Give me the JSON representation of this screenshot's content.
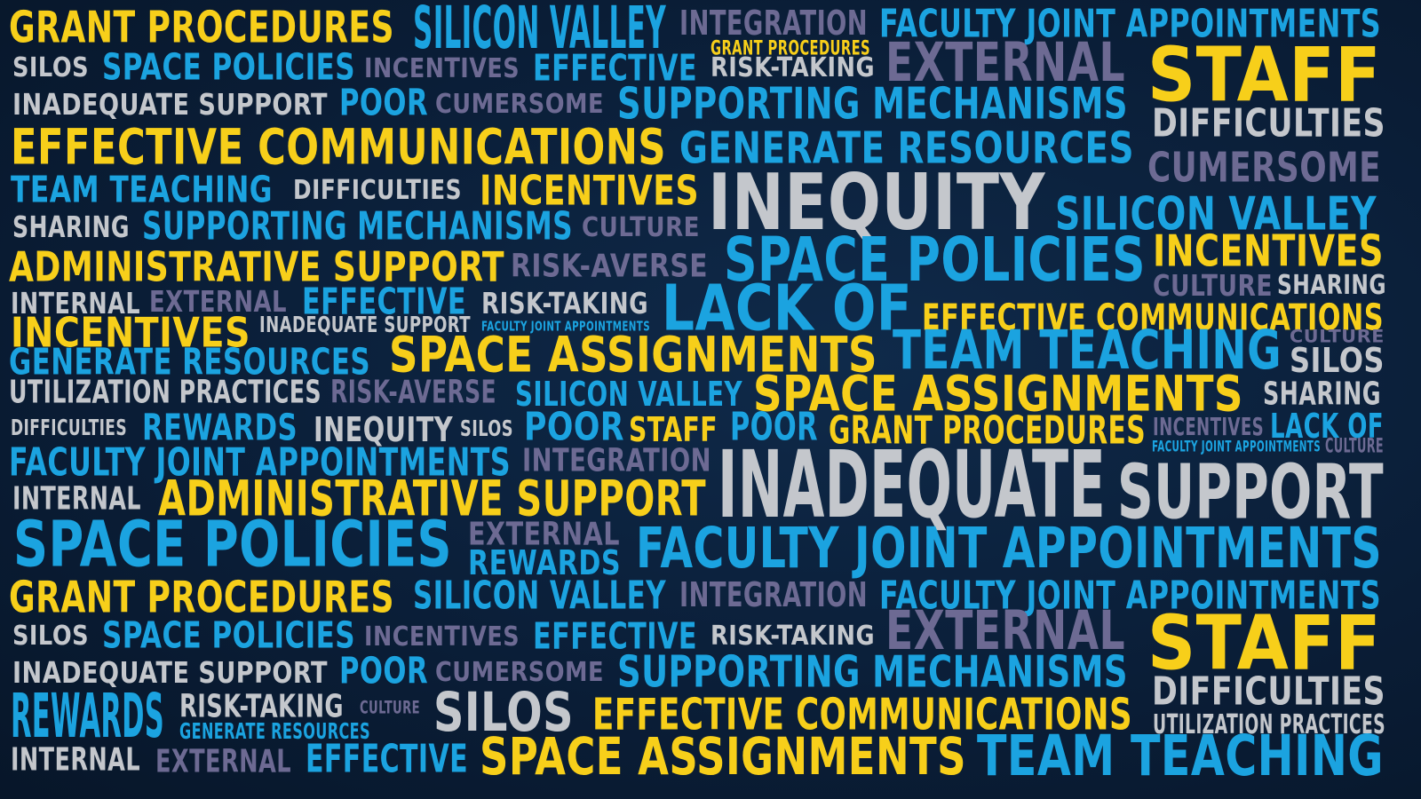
{
  "colors": {
    "background": "#0a1f3a",
    "yellow": "#f7cf1a",
    "blue": "#1ba3e0",
    "gray": "#c4c7cc",
    "purple": "#6d6a93"
  },
  "words": [
    {
      "text": "GRANT PROCEDURES",
      "color": "yellow"
    },
    {
      "text": "SILICON VALLEY",
      "color": "blue"
    },
    {
      "text": "INTEGRATION",
      "color": "purple"
    },
    {
      "text": "FACULTY JOINT APPOINTMENTS",
      "color": "blue"
    },
    {
      "text": "GRANT PROCEDURES",
      "color": "yellow"
    },
    {
      "text": "SILOS",
      "color": "gray"
    },
    {
      "text": "SPACE POLICIES",
      "color": "blue"
    },
    {
      "text": "INCENTIVES",
      "color": "purple"
    },
    {
      "text": "EFFECTIVE",
      "color": "blue"
    },
    {
      "text": "RISK-TAKING",
      "color": "gray"
    },
    {
      "text": "EXTERNAL",
      "color": "purple"
    },
    {
      "text": "STAFF",
      "color": "yellow"
    },
    {
      "text": "INADEQUATE SUPPORT",
      "color": "gray"
    },
    {
      "text": "POOR",
      "color": "blue"
    },
    {
      "text": "CUMERSOME",
      "color": "purple"
    },
    {
      "text": "SUPPORTING MECHANISMS",
      "color": "blue"
    },
    {
      "text": "DIFFICULTIES",
      "color": "gray"
    },
    {
      "text": "EFFECTIVE COMMUNICATIONS",
      "color": "yellow"
    },
    {
      "text": "GENERATE RESOURCES",
      "color": "blue"
    },
    {
      "text": "CUMERSOME",
      "color": "purple"
    },
    {
      "text": "TEAM TEACHING",
      "color": "blue"
    },
    {
      "text": "DIFFICULTIES",
      "color": "gray"
    },
    {
      "text": "INCENTIVES",
      "color": "yellow"
    },
    {
      "text": "INEQUITY",
      "color": "gray"
    },
    {
      "text": "SILICON VALLEY",
      "color": "blue"
    },
    {
      "text": "SHARING",
      "color": "gray"
    },
    {
      "text": "SUPPORTING MECHANISMS",
      "color": "blue"
    },
    {
      "text": "CULTURE",
      "color": "purple"
    },
    {
      "text": "ADMINISTRATIVE SUPPORT",
      "color": "yellow"
    },
    {
      "text": "RISK-AVERSE",
      "color": "purple"
    },
    {
      "text": "SPACE POLICIES",
      "color": "blue"
    },
    {
      "text": "INCENTIVES",
      "color": "yellow"
    },
    {
      "text": "INTERNAL",
      "color": "gray"
    },
    {
      "text": "EXTERNAL",
      "color": "purple"
    },
    {
      "text": "EFFECTIVE",
      "color": "blue"
    },
    {
      "text": "RISK-TAKING",
      "color": "gray"
    },
    {
      "text": "LACK OF",
      "color": "blue"
    },
    {
      "text": "CULTURE",
      "color": "purple"
    },
    {
      "text": "SHARING",
      "color": "gray"
    },
    {
      "text": "INCENTIVES",
      "color": "yellow"
    },
    {
      "text": "INADEQUATE SUPPORT",
      "color": "gray"
    },
    {
      "text": "FACULTY JOINT APPOINTMENTS",
      "color": "blue"
    },
    {
      "text": "EFFECTIVE COMMUNICATIONS",
      "color": "yellow"
    },
    {
      "text": "GENERATE RESOURCES",
      "color": "blue"
    },
    {
      "text": "SPACE ASSIGNMENTS",
      "color": "yellow"
    },
    {
      "text": "TEAM TEACHING",
      "color": "blue"
    },
    {
      "text": "CULTURE",
      "color": "purple"
    },
    {
      "text": "SILOS",
      "color": "gray"
    },
    {
      "text": "UTILIZATION PRACTICES",
      "color": "gray"
    },
    {
      "text": "RISK-AVERSE",
      "color": "purple"
    },
    {
      "text": "SILICON VALLEY",
      "color": "blue"
    },
    {
      "text": "SPACE ASSIGNMENTS",
      "color": "yellow"
    },
    {
      "text": "SHARING",
      "color": "gray"
    },
    {
      "text": "DIFFICULTIES",
      "color": "gray"
    },
    {
      "text": "REWARDS",
      "color": "blue"
    },
    {
      "text": "INEQUITY",
      "color": "gray"
    },
    {
      "text": "SILOS",
      "color": "gray"
    },
    {
      "text": "POOR",
      "color": "blue"
    },
    {
      "text": "STAFF",
      "color": "yellow"
    },
    {
      "text": "POOR",
      "color": "blue"
    },
    {
      "text": "GRANT PROCEDURES",
      "color": "yellow"
    },
    {
      "text": "INCENTIVES",
      "color": "purple"
    },
    {
      "text": "LACK OF",
      "color": "blue"
    },
    {
      "text": "FACULTY JOINT APPOINTMENTS",
      "color": "blue"
    },
    {
      "text": "CULTURE",
      "color": "purple"
    },
    {
      "text": "FACULTY JOINT APPOINTMENTS",
      "color": "blue"
    },
    {
      "text": "INTEGRATION",
      "color": "purple"
    },
    {
      "text": "INADEQUATE",
      "color": "gray"
    },
    {
      "text": "SUPPORT",
      "color": "gray"
    },
    {
      "text": "INTERNAL",
      "color": "gray"
    },
    {
      "text": "ADMINISTRATIVE SUPPORT",
      "color": "yellow"
    },
    {
      "text": "SPACE POLICIES",
      "color": "blue"
    },
    {
      "text": "EXTERNAL",
      "color": "purple"
    },
    {
      "text": "REWARDS",
      "color": "blue"
    },
    {
      "text": "FACULTY JOINT APPOINTMENTS",
      "color": "blue"
    },
    {
      "text": "GRANT PROCEDURES",
      "color": "yellow"
    },
    {
      "text": "SILICON VALLEY",
      "color": "blue"
    },
    {
      "text": "INTEGRATION",
      "color": "purple"
    },
    {
      "text": "FACULTY JOINT APPOINTMENTS",
      "color": "blue"
    },
    {
      "text": "SILOS",
      "color": "gray"
    },
    {
      "text": "SPACE POLICIES",
      "color": "blue"
    },
    {
      "text": "INCENTIVES",
      "color": "purple"
    },
    {
      "text": "EFFECTIVE",
      "color": "blue"
    },
    {
      "text": "RISK-TAKING",
      "color": "gray"
    },
    {
      "text": "EXTERNAL",
      "color": "purple"
    },
    {
      "text": "STAFF",
      "color": "yellow"
    },
    {
      "text": "INADEQUATE SUPPORT",
      "color": "gray"
    },
    {
      "text": "POOR",
      "color": "blue"
    },
    {
      "text": "CUMERSOME",
      "color": "purple"
    },
    {
      "text": "SUPPORTING MECHANISMS",
      "color": "blue"
    },
    {
      "text": "DIFFICULTIES",
      "color": "gray"
    },
    {
      "text": "REWARDS",
      "color": "blue"
    },
    {
      "text": "RISK-TAKING",
      "color": "gray"
    },
    {
      "text": "CULTURE",
      "color": "purple"
    },
    {
      "text": "SILOS",
      "color": "gray"
    },
    {
      "text": "EFFECTIVE COMMUNICATIONS",
      "color": "yellow"
    },
    {
      "text": "UTILIZATION PRACTICES",
      "color": "gray"
    },
    {
      "text": "GENERATE RESOURCES",
      "color": "blue"
    },
    {
      "text": "INTERNAL",
      "color": "gray"
    },
    {
      "text": "EXTERNAL",
      "color": "purple"
    },
    {
      "text": "EFFECTIVE",
      "color": "blue"
    },
    {
      "text": "SPACE ASSIGNMENTS",
      "color": "yellow"
    },
    {
      "text": "TEAM TEACHING",
      "color": "blue"
    }
  ]
}
